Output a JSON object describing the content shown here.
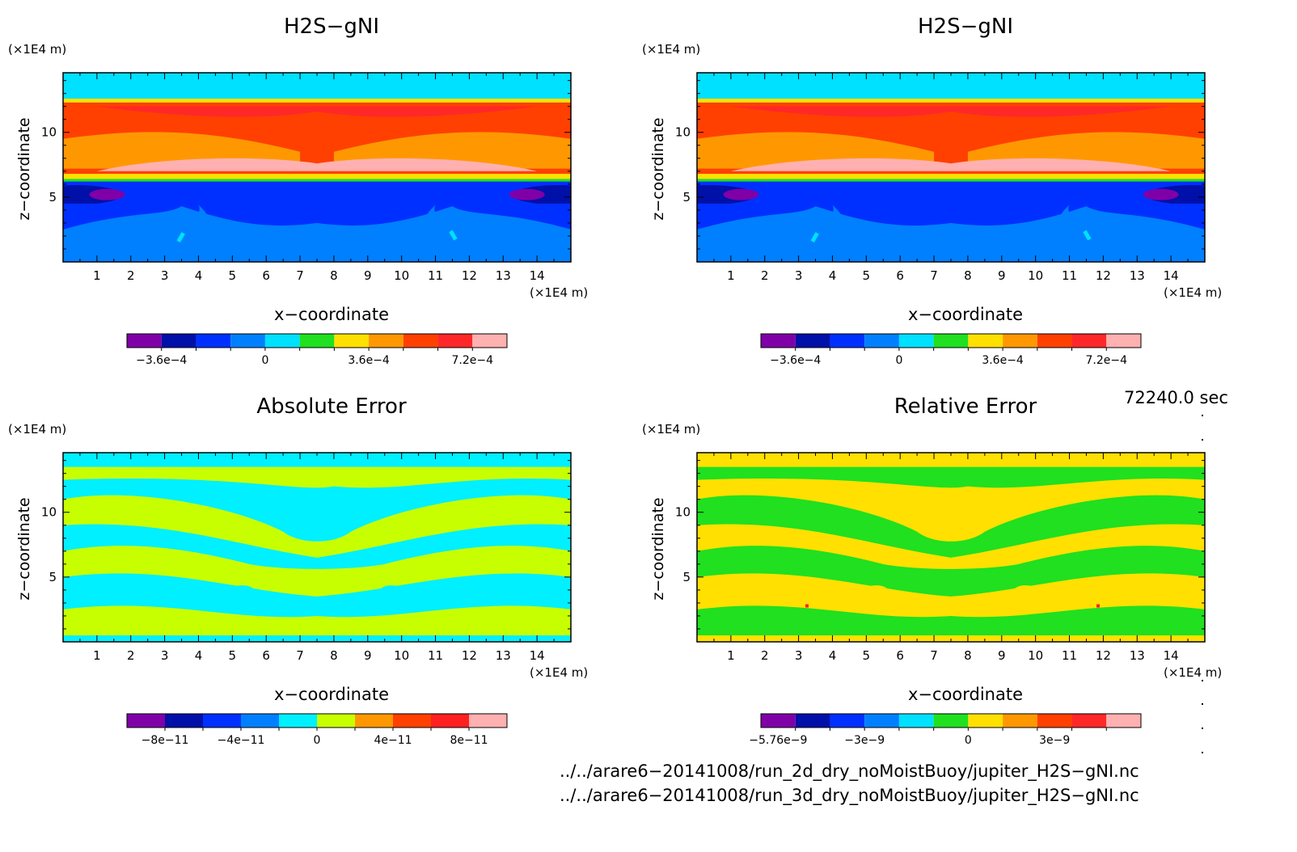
{
  "panels": [
    {
      "title": "H2S−gNI",
      "z_unit": "(×1E4 m)",
      "x_unit": "(×1E4 m)",
      "xlabel": "x−coordinate",
      "ylabel": "z−coordinate",
      "colorbar_ticks": [
        "−3.6e−4",
        "0",
        "3.6e−4",
        "7.2e−4"
      ],
      "colorbar_colors": [
        "#8000a8",
        "#0010a8",
        "#0030ff",
        "#0080ff",
        "#00e0ff",
        "#20e020",
        "#ffe000",
        "#ff9800",
        "#ff4000",
        "#ff2828",
        "#ffb0b0"
      ]
    },
    {
      "title": "H2S−gNI",
      "z_unit": "(×1E4 m)",
      "x_unit": "(×1E4 m)",
      "xlabel": "x−coordinate",
      "ylabel": "z−coordinate",
      "colorbar_ticks": [
        "−3.6e−4",
        "0",
        "3.6e−4",
        "7.2e−4"
      ],
      "colorbar_colors": [
        "#8000a8",
        "#0010a8",
        "#0030ff",
        "#0080ff",
        "#00e0ff",
        "#20e020",
        "#ffe000",
        "#ff9800",
        "#ff4000",
        "#ff2828",
        "#ffb0b0"
      ]
    },
    {
      "title": "Absolute Error",
      "z_unit": "(×1E4 m)",
      "x_unit": "(×1E4 m)",
      "xlabel": "x−coordinate",
      "ylabel": "z−coordinate",
      "colorbar_ticks": [
        "−8e−11",
        "−4e−11",
        "0",
        "4e−11",
        "8e−11"
      ],
      "colorbar_colors": [
        "#8000a8",
        "#0010a8",
        "#0030ff",
        "#0080ff",
        "#00f0ff",
        "#c8ff00",
        "#ff9800",
        "#ff4000",
        "#ff2020",
        "#ffb0b0"
      ]
    },
    {
      "title": "Relative Error",
      "z_unit": "(×1E4 m)",
      "x_unit": "(×1E4 m)",
      "xlabel": "x−coordinate",
      "ylabel": "z−coordinate",
      "colorbar_ticks": [
        "−5.76e−9",
        "−3e−9",
        "0",
        "3e−9"
      ],
      "colorbar_colors": [
        "#8000a8",
        "#0010a8",
        "#0030ff",
        "#0080ff",
        "#00e0ff",
        "#20e020",
        "#ffe000",
        "#ff9800",
        "#ff4000",
        "#ff2828",
        "#ffb0b0"
      ]
    }
  ],
  "time_label": "72240.0 sec",
  "file_paths": [
    "../../arare6−20141008/run_2d_dry_noMoistBuoy/jupiter_H2S−gNI.nc",
    "../../arare6−20141008/run_3d_dry_noMoistBuoy/jupiter_H2S−gNI.nc"
  ],
  "chart_data": [
    {
      "type": "heatmap",
      "title": "H2S−gNI",
      "xlabel": "x−coordinate",
      "ylabel": "z−coordinate",
      "xlim": [
        0,
        15
      ],
      "ylim": [
        0,
        14.6
      ],
      "x_ticks": [
        1,
        2,
        3,
        4,
        5,
        6,
        7,
        8,
        9,
        10,
        11,
        12,
        13,
        14
      ],
      "y_ticks": [
        5,
        10
      ],
      "colorbar_ticks": [
        "−3.6e−4",
        "0",
        "3.6e−4",
        "7.2e−4"
      ],
      "z_bands": [
        {
          "z_from": 12.5,
          "z_to": 14.6,
          "level": "~0 (cyan)"
        },
        {
          "z_from": 6.4,
          "z_to": 12.5,
          "level": "3.6e−4 to 8.4e−4 (orange/red/pink)"
        },
        {
          "z_from": 0,
          "z_to": 6.4,
          "level": "−3.6e−4 to 0 (blue)"
        }
      ]
    },
    {
      "type": "heatmap",
      "title": "H2S−gNI",
      "xlabel": "x−coordinate",
      "ylabel": "z−coordinate",
      "xlim": [
        0,
        15
      ],
      "ylim": [
        0,
        14.6
      ],
      "x_ticks": [
        1,
        2,
        3,
        4,
        5,
        6,
        7,
        8,
        9,
        10,
        11,
        12,
        13,
        14
      ],
      "y_ticks": [
        5,
        10
      ],
      "colorbar_ticks": [
        "−3.6e−4",
        "0",
        "3.6e−4",
        "7.2e−4"
      ]
    },
    {
      "type": "heatmap",
      "title": "Absolute Error",
      "xlabel": "x−coordinate",
      "ylabel": "z−coordinate",
      "xlim": [
        0,
        15
      ],
      "ylim": [
        0,
        14.6
      ],
      "x_ticks": [
        1,
        2,
        3,
        4,
        5,
        6,
        7,
        8,
        9,
        10,
        11,
        12,
        13,
        14
      ],
      "y_ticks": [
        5,
        10
      ],
      "colorbar_ticks": [
        "−8e−11",
        "−4e−11",
        "0",
        "4e−11",
        "8e−11"
      ]
    },
    {
      "type": "heatmap",
      "title": "Relative Error",
      "xlabel": "x−coordinate",
      "ylabel": "z−coordinate",
      "xlim": [
        0,
        15
      ],
      "ylim": [
        0,
        14.6
      ],
      "x_ticks": [
        1,
        2,
        3,
        4,
        5,
        6,
        7,
        8,
        9,
        10,
        11,
        12,
        13,
        14
      ],
      "y_ticks": [
        5,
        10
      ],
      "colorbar_ticks": [
        "−5.76e−9",
        "−3e−9",
        "0",
        "3e−9"
      ]
    }
  ]
}
